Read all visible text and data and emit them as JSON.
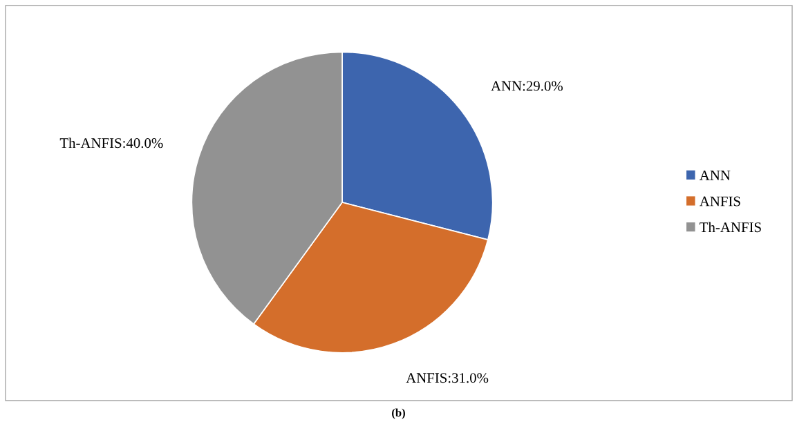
{
  "chart_data": {
    "type": "pie",
    "categories": [
      "ANN",
      "ANFIS",
      "Th-ANFIS"
    ],
    "values": [
      29.0,
      31.0,
      40.0
    ],
    "colors": [
      "#3d65ae",
      "#d46e2b",
      "#929292"
    ],
    "value_labels": [
      "ANN:29.0%",
      "ANFIS:31.0%",
      "Th-ANFIS:40.0%"
    ],
    "legend": "right",
    "annotations": [
      "(b)"
    ]
  }
}
